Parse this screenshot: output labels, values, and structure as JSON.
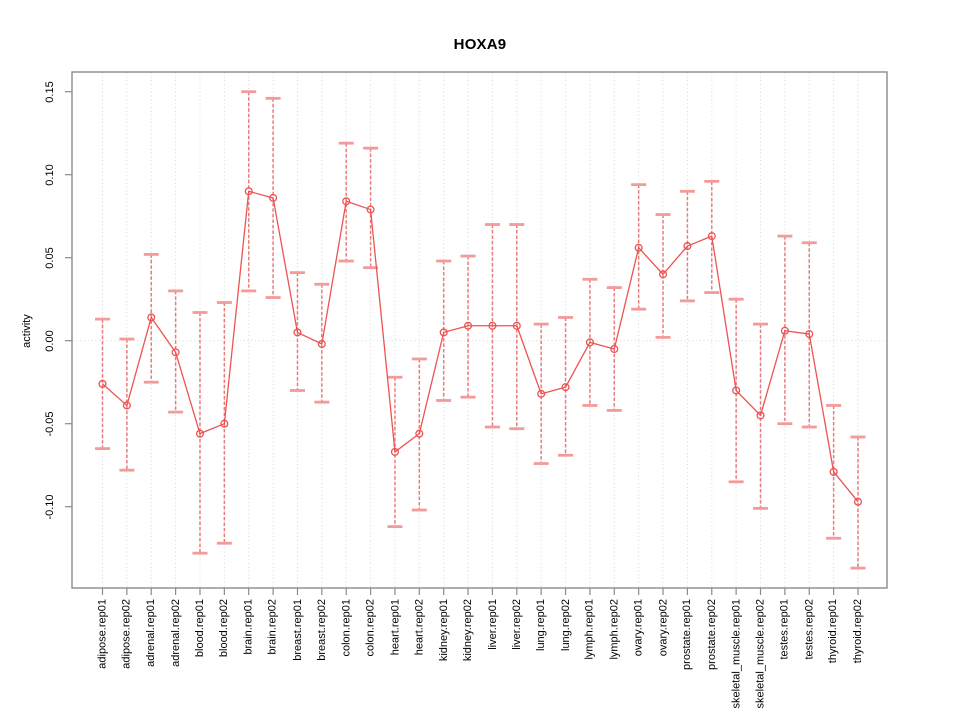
{
  "title": "HOXA9",
  "y_axis": {
    "label": "activity",
    "tick_labels": [
      "0.15",
      "0.10",
      "0.05",
      "0.00",
      "-0.05",
      "-0.10"
    ],
    "tick_values": [
      0.15,
      0.1,
      0.05,
      0.0,
      -0.05,
      -0.1
    ]
  },
  "colors": {
    "series_line": "#ee5252",
    "point_stroke": "#ee5252",
    "errorbar_line": "#e96666",
    "errorbar_cap": "#f39a9a",
    "grid": "#d8d8d8",
    "frame": "#8a8a8a",
    "text": "#000000"
  },
  "chart_data": {
    "type": "line",
    "title": "HOXA9",
    "xlabel": "",
    "ylabel": "activity",
    "ylim": [
      -0.149,
      0.161
    ],
    "grid": "dotted vertical line at every category; dotted horizontal line at y=0",
    "legend": "none",
    "point_style": "open circle with asymmetric error bars (dashed stem, solid caps)",
    "categories": [
      "adipose.rep01",
      "adipose.rep02",
      "adrenal.rep01",
      "adrenal.rep02",
      "blood.rep01",
      "blood.rep02",
      "brain.rep01",
      "brain.rep02",
      "breast.rep01",
      "breast.rep02",
      "colon.rep01",
      "colon.rep02",
      "heart.rep01",
      "heart.rep02",
      "kidney.rep01",
      "kidney.rep02",
      "liver.rep01",
      "liver.rep02",
      "lung.rep01",
      "lung.rep02",
      "lymph.rep01",
      "lymph.rep02",
      "ovary.rep01",
      "ovary.rep02",
      "prostate.rep01",
      "prostate.rep02",
      "skeletal_muscle.rep01",
      "skeletal_muscle.rep02",
      "testes.rep01",
      "testes.rep02",
      "thyroid.rep01",
      "thyroid.rep02"
    ],
    "series": [
      {
        "name": "activity",
        "values": [
          -0.026,
          -0.039,
          0.014,
          -0.007,
          -0.056,
          -0.05,
          0.09,
          0.086,
          0.005,
          -0.002,
          0.084,
          0.079,
          -0.067,
          -0.056,
          0.005,
          0.009,
          0.009,
          0.009,
          -0.032,
          -0.028,
          -0.001,
          -0.005,
          0.056,
          0.04,
          0.057,
          0.063,
          -0.03,
          -0.045,
          0.006,
          0.004,
          -0.079,
          -0.097
        ],
        "err_high": [
          0.013,
          0.001,
          0.052,
          0.03,
          0.017,
          0.023,
          0.15,
          0.146,
          0.041,
          0.034,
          0.119,
          0.116,
          -0.022,
          -0.011,
          0.048,
          0.051,
          0.07,
          0.07,
          0.01,
          0.014,
          0.037,
          0.032,
          0.094,
          0.076,
          0.09,
          0.096,
          0.025,
          0.01,
          0.063,
          0.059,
          -0.039,
          -0.058
        ],
        "err_low": [
          -0.065,
          -0.078,
          -0.025,
          -0.043,
          -0.128,
          -0.122,
          0.03,
          0.026,
          -0.03,
          -0.037,
          0.048,
          0.044,
          -0.112,
          -0.102,
          -0.036,
          -0.034,
          -0.052,
          -0.053,
          -0.074,
          -0.069,
          -0.039,
          -0.042,
          0.019,
          0.002,
          0.024,
          0.029,
          -0.085,
          -0.101,
          -0.05,
          -0.052,
          -0.119,
          -0.137
        ]
      }
    ]
  }
}
